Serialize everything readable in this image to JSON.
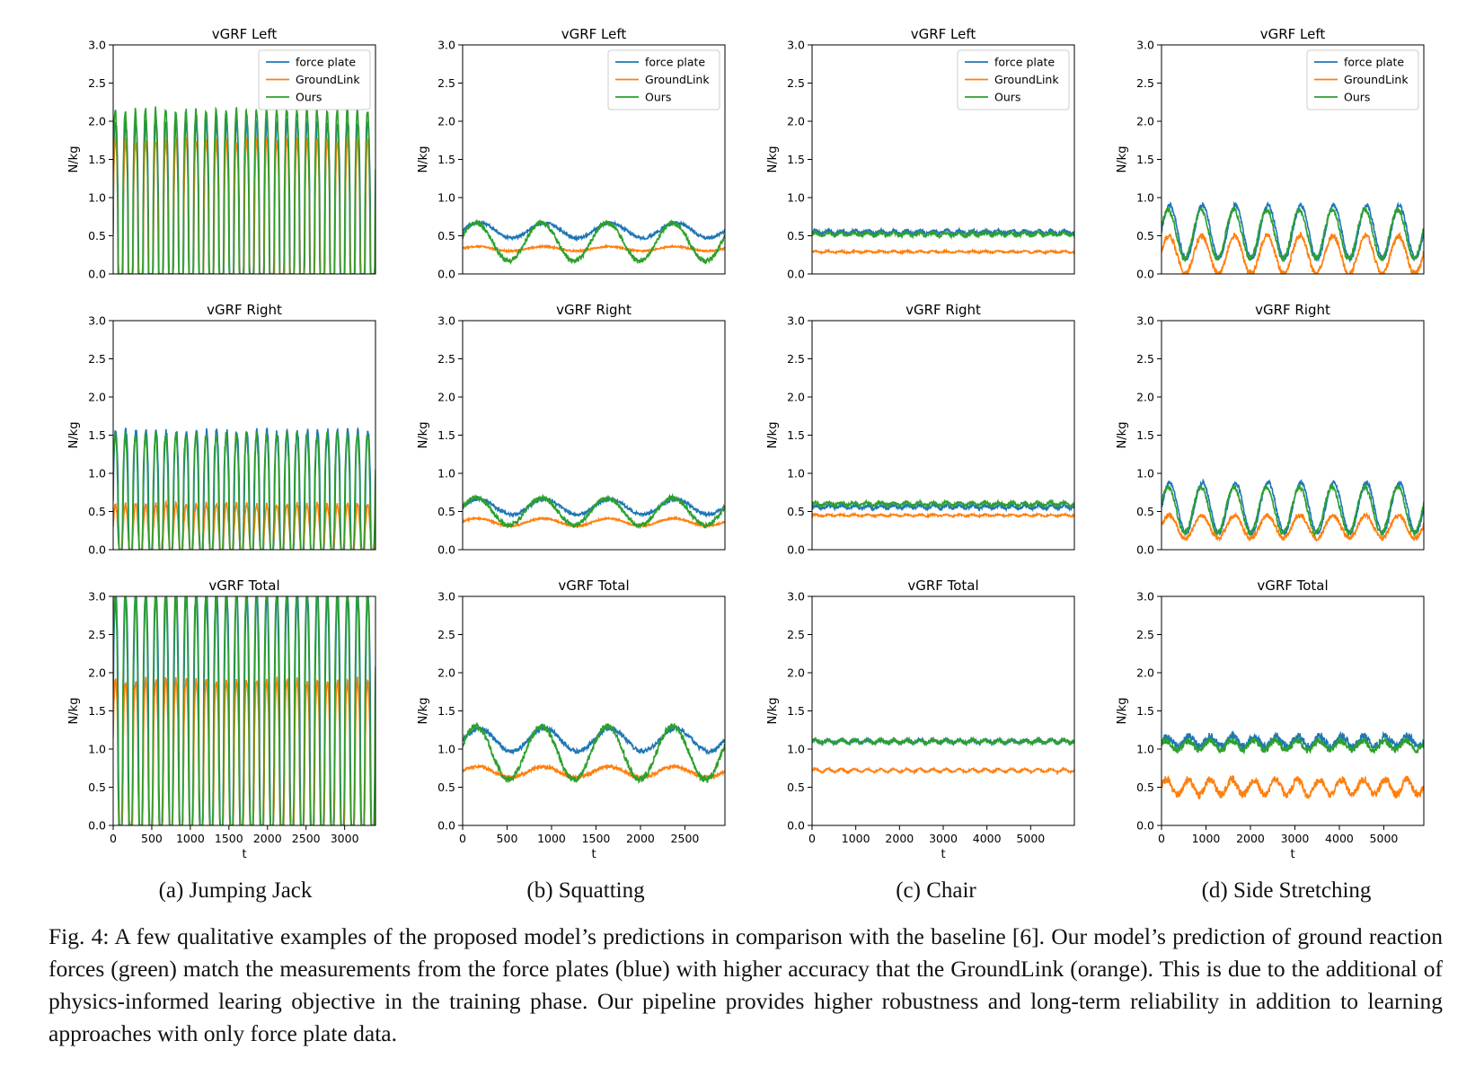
{
  "chart_data": [
    {
      "type": "line",
      "panel": "a",
      "row": 0,
      "title": "vGRF Left",
      "xlabel": "",
      "ylabel": "N/kg",
      "xlim": [
        0,
        3400
      ],
      "ylim": [
        0,
        3
      ],
      "xticks": [],
      "yticks": [
        "0.0",
        "0.5",
        "1.0",
        "1.5",
        "2.0",
        "2.5",
        "3.0"
      ],
      "legend": "top-right",
      "series": [
        {
          "name": "force plate",
          "color": "#1f77b4",
          "mean": 0.55,
          "amp": 1.45,
          "cycles": 26,
          "noise": 0.05
        },
        {
          "name": "GroundLink",
          "color": "#ff7f0e",
          "mean": 0.5,
          "amp": 1.25,
          "cycles": 26,
          "noise": 0.05
        },
        {
          "name": "Ours",
          "color": "#2ca02c",
          "mean": 0.6,
          "amp": 1.55,
          "cycles": 26,
          "noise": 0.05
        }
      ]
    },
    {
      "type": "line",
      "panel": "b",
      "row": 0,
      "title": "vGRF Left",
      "xlabel": "",
      "ylabel": "N/kg",
      "xlim": [
        0,
        2950
      ],
      "ylim": [
        0,
        3
      ],
      "xticks": [],
      "yticks": [
        "0.0",
        "0.5",
        "1.0",
        "1.5",
        "2.0",
        "2.5",
        "3.0"
      ],
      "legend": "top-right",
      "series": [
        {
          "name": "force plate",
          "color": "#1f77b4",
          "mean": 0.57,
          "amp": 0.1,
          "cycles": 4,
          "noise": 0.02
        },
        {
          "name": "GroundLink",
          "color": "#ff7f0e",
          "mean": 0.33,
          "amp": 0.03,
          "cycles": 4,
          "noise": 0.01
        },
        {
          "name": "Ours",
          "color": "#2ca02c",
          "mean": 0.42,
          "amp": 0.25,
          "cycles": 4,
          "noise": 0.03
        }
      ]
    },
    {
      "type": "line",
      "panel": "c",
      "row": 0,
      "title": "vGRF Left",
      "xlabel": "",
      "ylabel": "N/kg",
      "xlim": [
        0,
        6000
      ],
      "ylim": [
        0,
        3
      ],
      "xticks": [],
      "yticks": [
        "0.0",
        "0.5",
        "1.0",
        "1.5",
        "2.0",
        "2.5",
        "3.0"
      ],
      "legend": "top-right",
      "series": [
        {
          "name": "force plate",
          "color": "#1f77b4",
          "mean": 0.55,
          "amp": 0.02,
          "cycles": 20,
          "noise": 0.02
        },
        {
          "name": "GroundLink",
          "color": "#ff7f0e",
          "mean": 0.29,
          "amp": 0.01,
          "cycles": 20,
          "noise": 0.01
        },
        {
          "name": "Ours",
          "color": "#2ca02c",
          "mean": 0.52,
          "amp": 0.02,
          "cycles": 20,
          "noise": 0.02
        }
      ]
    },
    {
      "type": "line",
      "panel": "d",
      "row": 0,
      "title": "vGRF Left",
      "xlabel": "",
      "ylabel": "N/kg",
      "xlim": [
        0,
        5900
      ],
      "ylim": [
        0,
        3
      ],
      "xticks": [],
      "yticks": [
        "0.0",
        "0.5",
        "1.0",
        "1.5",
        "2.0",
        "2.5",
        "3.0"
      ],
      "legend": "top-right",
      "series": [
        {
          "name": "force plate",
          "color": "#1f77b4",
          "mean": 0.55,
          "amp": 0.35,
          "cycles": 8,
          "noise": 0.03
        },
        {
          "name": "GroundLink",
          "color": "#ff7f0e",
          "mean": 0.25,
          "amp": 0.25,
          "cycles": 8,
          "noise": 0.04
        },
        {
          "name": "Ours",
          "color": "#2ca02c",
          "mean": 0.52,
          "amp": 0.32,
          "cycles": 8,
          "noise": 0.03
        }
      ]
    },
    {
      "type": "line",
      "panel": "a",
      "row": 1,
      "title": "vGRF Right",
      "xlabel": "",
      "ylabel": "N/kg",
      "xlim": [
        0,
        3400
      ],
      "ylim": [
        0,
        3
      ],
      "xticks": [],
      "yticks": [
        "0.0",
        "0.5",
        "1.0",
        "1.5",
        "2.0",
        "2.5",
        "3.0"
      ],
      "legend": "none",
      "series": [
        {
          "name": "force plate",
          "color": "#1f77b4",
          "mean": 0.65,
          "amp": 0.9,
          "cycles": 26,
          "noise": 0.05
        },
        {
          "name": "GroundLink",
          "color": "#ff7f0e",
          "mean": 0.25,
          "amp": 0.35,
          "cycles": 26,
          "noise": 0.03
        },
        {
          "name": "Ours",
          "color": "#2ca02c",
          "mean": 0.65,
          "amp": 0.85,
          "cycles": 26,
          "noise": 0.05
        }
      ]
    },
    {
      "type": "line",
      "panel": "b",
      "row": 1,
      "title": "vGRF Right",
      "xlabel": "",
      "ylabel": "N/kg",
      "xlim": [
        0,
        2950
      ],
      "ylim": [
        0,
        3
      ],
      "xticks": [],
      "yticks": [
        "0.0",
        "0.5",
        "1.0",
        "1.5",
        "2.0",
        "2.5",
        "3.0"
      ],
      "legend": "none",
      "series": [
        {
          "name": "force plate",
          "color": "#1f77b4",
          "mean": 0.56,
          "amp": 0.1,
          "cycles": 4,
          "noise": 0.02
        },
        {
          "name": "GroundLink",
          "color": "#ff7f0e",
          "mean": 0.36,
          "amp": 0.05,
          "cycles": 4,
          "noise": 0.01
        },
        {
          "name": "Ours",
          "color": "#2ca02c",
          "mean": 0.5,
          "amp": 0.18,
          "cycles": 4,
          "noise": 0.03
        }
      ]
    },
    {
      "type": "line",
      "panel": "c",
      "row": 1,
      "title": "vGRF Right",
      "xlabel": "",
      "ylabel": "N/kg",
      "xlim": [
        0,
        6000
      ],
      "ylim": [
        0,
        3
      ],
      "xticks": [],
      "yticks": [
        "0.0",
        "0.5",
        "1.0",
        "1.5",
        "2.0",
        "2.5",
        "3.0"
      ],
      "legend": "none",
      "series": [
        {
          "name": "force plate",
          "color": "#1f77b4",
          "mean": 0.56,
          "amp": 0.02,
          "cycles": 20,
          "noise": 0.02
        },
        {
          "name": "GroundLink",
          "color": "#ff7f0e",
          "mean": 0.45,
          "amp": 0.01,
          "cycles": 20,
          "noise": 0.01
        },
        {
          "name": "Ours",
          "color": "#2ca02c",
          "mean": 0.6,
          "amp": 0.02,
          "cycles": 20,
          "noise": 0.02
        }
      ]
    },
    {
      "type": "line",
      "panel": "d",
      "row": 1,
      "title": "vGRF Right",
      "xlabel": "",
      "ylabel": "N/kg",
      "xlim": [
        0,
        5900
      ],
      "ylim": [
        0,
        3
      ],
      "xticks": [],
      "yticks": [
        "0.0",
        "0.5",
        "1.0",
        "1.5",
        "2.0",
        "2.5",
        "3.0"
      ],
      "legend": "none",
      "series": [
        {
          "name": "force plate",
          "color": "#1f77b4",
          "mean": 0.55,
          "amp": 0.33,
          "cycles": 8,
          "noise": 0.03
        },
        {
          "name": "GroundLink",
          "color": "#ff7f0e",
          "mean": 0.3,
          "amp": 0.15,
          "cycles": 8,
          "noise": 0.03
        },
        {
          "name": "Ours",
          "color": "#2ca02c",
          "mean": 0.52,
          "amp": 0.3,
          "cycles": 8,
          "noise": 0.03
        }
      ]
    },
    {
      "type": "line",
      "panel": "a",
      "row": 2,
      "title": "vGRF Total",
      "xlabel": "t",
      "ylabel": "N/kg",
      "xlim": [
        0,
        3400
      ],
      "ylim": [
        0,
        3
      ],
      "xticks": [
        "0",
        "500",
        "1000",
        "1500",
        "2000",
        "2500",
        "3000"
      ],
      "yticks": [
        "0.0",
        "0.5",
        "1.0",
        "1.5",
        "2.0",
        "2.5",
        "3.0"
      ],
      "legend": "none",
      "series": [
        {
          "name": "force plate",
          "color": "#1f77b4",
          "mean": 1.3,
          "amp": 1.75,
          "cycles": 26,
          "noise": 0.06
        },
        {
          "name": "GroundLink",
          "color": "#ff7f0e",
          "mean": 0.8,
          "amp": 1.1,
          "cycles": 26,
          "noise": 0.05
        },
        {
          "name": "Ours",
          "color": "#2ca02c",
          "mean": 1.3,
          "amp": 1.75,
          "cycles": 26,
          "noise": 0.06
        }
      ]
    },
    {
      "type": "line",
      "panel": "b",
      "row": 2,
      "title": "vGRF Total",
      "xlabel": "t",
      "ylabel": "N/kg",
      "xlim": [
        0,
        2950
      ],
      "ylim": [
        0,
        3
      ],
      "xticks": [
        "0",
        "500",
        "1000",
        "1500",
        "2000",
        "2500"
      ],
      "yticks": [
        "0.0",
        "0.5",
        "1.0",
        "1.5",
        "2.0",
        "2.5",
        "3.0"
      ],
      "legend": "none",
      "series": [
        {
          "name": "force plate",
          "color": "#1f77b4",
          "mean": 1.12,
          "amp": 0.15,
          "cycles": 4,
          "noise": 0.03
        },
        {
          "name": "GroundLink",
          "color": "#ff7f0e",
          "mean": 0.7,
          "amp": 0.07,
          "cycles": 4,
          "noise": 0.02
        },
        {
          "name": "Ours",
          "color": "#2ca02c",
          "mean": 0.95,
          "amp": 0.35,
          "cycles": 4,
          "noise": 0.04
        }
      ]
    },
    {
      "type": "line",
      "panel": "c",
      "row": 2,
      "title": "vGRF Total",
      "xlabel": "t",
      "ylabel": "N/kg",
      "xlim": [
        0,
        6000
      ],
      "ylim": [
        0,
        3
      ],
      "xticks": [
        "0",
        "1000",
        "2000",
        "3000",
        "4000",
        "5000"
      ],
      "yticks": [
        "0.0",
        "0.5",
        "1.0",
        "1.5",
        "2.0",
        "2.5",
        "3.0"
      ],
      "legend": "none",
      "series": [
        {
          "name": "force plate",
          "color": "#1f77b4",
          "mean": 1.1,
          "amp": 0.02,
          "cycles": 20,
          "noise": 0.02
        },
        {
          "name": "GroundLink",
          "color": "#ff7f0e",
          "mean": 0.72,
          "amp": 0.02,
          "cycles": 20,
          "noise": 0.01
        },
        {
          "name": "Ours",
          "color": "#2ca02c",
          "mean": 1.1,
          "amp": 0.02,
          "cycles": 20,
          "noise": 0.02
        }
      ]
    },
    {
      "type": "line",
      "panel": "d",
      "row": 2,
      "title": "vGRF Total",
      "xlabel": "t",
      "ylabel": "N/kg",
      "xlim": [
        0,
        5900
      ],
      "ylim": [
        0,
        3
      ],
      "xticks": [
        "0",
        "1000",
        "2000",
        "3000",
        "4000",
        "5000"
      ],
      "yticks": [
        "0.0",
        "0.5",
        "1.0",
        "1.5",
        "2.0",
        "2.5",
        "3.0"
      ],
      "legend": "none",
      "series": [
        {
          "name": "force plate",
          "color": "#1f77b4",
          "mean": 1.1,
          "amp": 0.07,
          "cycles": 12,
          "noise": 0.05
        },
        {
          "name": "GroundLink",
          "color": "#ff7f0e",
          "mean": 0.5,
          "amp": 0.1,
          "cycles": 12,
          "noise": 0.05
        },
        {
          "name": "Ours",
          "color": "#2ca02c",
          "mean": 1.05,
          "amp": 0.06,
          "cycles": 12,
          "noise": 0.04
        }
      ]
    }
  ],
  "subcaptions": [
    "(a) Jumping Jack",
    "(b) Squatting",
    "(c) Chair",
    "(d) Side Stretching"
  ],
  "caption": "Fig. 4: A few qualitative examples of the proposed model’s predictions in comparison with the baseline [6]. Our model’s prediction of ground reaction forces (green) match the measurements from the force plates (blue) with higher accuracy that the GroundLink (orange). This is due to the additional of physics-informed learing objective in the training phase. Our pipeline provides higher robustness and long-term reliability in addition to learning approaches with only force plate data."
}
